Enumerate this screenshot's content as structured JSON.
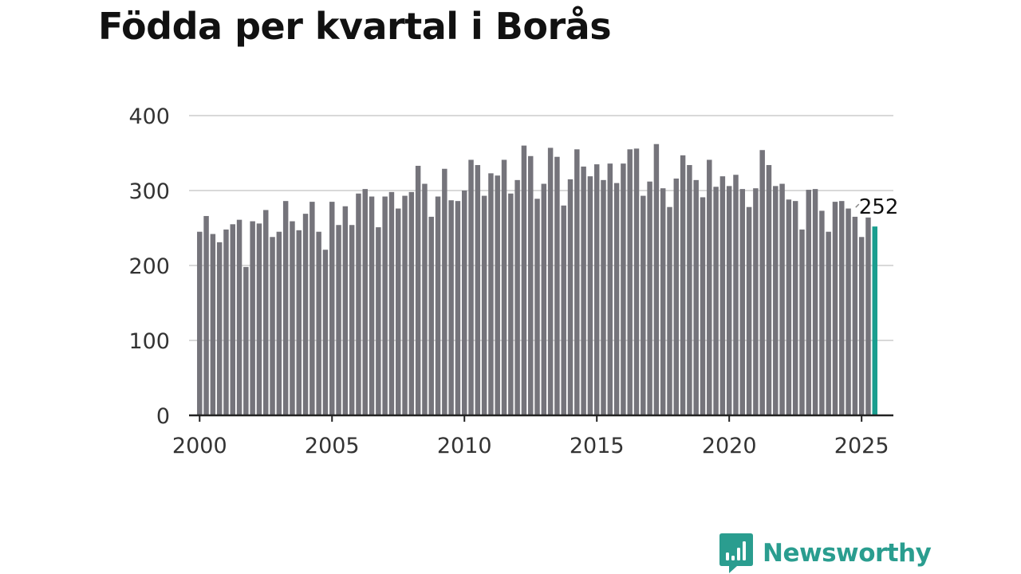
{
  "title": "Födda per kvartal i Borås",
  "brand": {
    "name": "Newsworthy",
    "icon": "newsworthy-logo-icon",
    "color": "#2a9d8f"
  },
  "colors": {
    "bar": "#75747b",
    "highlight": "#1a9e8f",
    "grid": "#d9d9d9",
    "axis": "#222222"
  },
  "chart_data": {
    "type": "bar",
    "title": "Födda per kvartal i Borås",
    "xlabel": "",
    "ylabel": "",
    "ylim": [
      0,
      400
    ],
    "yticks": [
      0,
      100,
      200,
      300,
      400
    ],
    "xticks": [
      2000,
      2005,
      2010,
      2015,
      2020,
      2025
    ],
    "xlim": [
      1999.6,
      2026.2
    ],
    "grid": true,
    "series": [
      {
        "name": "Födda",
        "start_year": 2000,
        "start_quarter": 1,
        "values": [
          245,
          266,
          242,
          231,
          248,
          255,
          261,
          198,
          259,
          256,
          274,
          238,
          245,
          286,
          259,
          247,
          269,
          285,
          245,
          221,
          285,
          254,
          279,
          254,
          296,
          302,
          292,
          251,
          292,
          298,
          276,
          293,
          298,
          333,
          309,
          265,
          292,
          329,
          287,
          286,
          300,
          341,
          334,
          293,
          323,
          320,
          341,
          296,
          314,
          360,
          346,
          289,
          309,
          357,
          345,
          280,
          315,
          355,
          332,
          319,
          335,
          314,
          336,
          310,
          336,
          355,
          356,
          293,
          312,
          362,
          303,
          278,
          316,
          347,
          334,
          314,
          291,
          341,
          305,
          319,
          306,
          321,
          302,
          278,
          303,
          354,
          334,
          306,
          309,
          288,
          286,
          248,
          301,
          302,
          273,
          245,
          285,
          286,
          276,
          265,
          238,
          264,
          252
        ]
      }
    ],
    "highlight": {
      "label": "252",
      "value": 252,
      "index": 102
    }
  }
}
